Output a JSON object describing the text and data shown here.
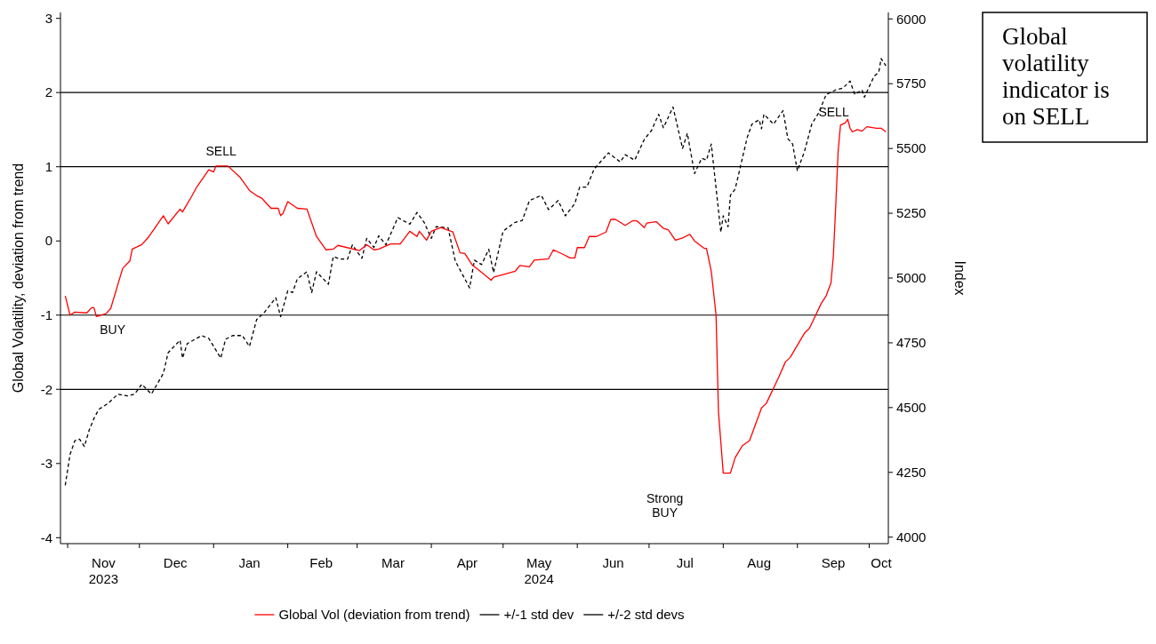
{
  "chart_data": {
    "type": "line",
    "ylabel": "Global Volatility, deviation from trend",
    "y2label": "Index",
    "xlim": [
      "2023-10-29",
      "2024-10-09"
    ],
    "xticks": [
      {
        "value": "2023-11-01",
        "label": null
      },
      {
        "value": "2023-12-01",
        "label": null
      },
      {
        "value": "2024-01-01",
        "label": null
      },
      {
        "value": "2024-02-01",
        "label": null
      },
      {
        "value": "2024-03-01",
        "label": null
      },
      {
        "value": "2024-04-01",
        "label": null
      },
      {
        "value": "2024-05-01",
        "label": null
      },
      {
        "value": "2024-06-01",
        "label": null
      },
      {
        "value": "2024-07-01",
        "label": null
      },
      {
        "value": "2024-08-01",
        "label": null
      },
      {
        "value": "2024-09-01",
        "label": null
      },
      {
        "value": "2024-10-01",
        "label": null
      },
      {
        "value": "2023-11-16",
        "label": "Nov\n2023"
      },
      {
        "value": "2023-12-16",
        "label": "Dec"
      },
      {
        "value": "2024-01-16",
        "label": "Jan"
      },
      {
        "value": "2024-02-15",
        "label": "Feb"
      },
      {
        "value": "2024-03-16",
        "label": "Mar"
      },
      {
        "value": "2024-04-16",
        "label": "Apr"
      },
      {
        "value": "2024-05-16",
        "label": "May\n2024"
      },
      {
        "value": "2024-06-16",
        "label": "Jun"
      },
      {
        "value": "2024-07-16",
        "label": "Jul"
      },
      {
        "value": "2024-08-16",
        "label": "Aug"
      },
      {
        "value": "2024-09-16",
        "label": "Sep"
      },
      {
        "value": "2024-10-06",
        "label": "Oct"
      }
    ],
    "ylim": [
      -4.08,
      3.08
    ],
    "yticks": [
      -4,
      -3,
      -2,
      -1,
      0,
      1,
      2,
      3
    ],
    "y2lim": [
      3975,
      6025
    ],
    "y2ticks": [
      4000,
      4250,
      4500,
      4750,
      5000,
      5250,
      5500,
      5750,
      6000
    ],
    "legend": "bottom",
    "series": [
      {
        "color": "#000000",
        "axis": "y2",
        "line_style": "dashed",
        "x": [
          "2023-10-31",
          "2023-11-02",
          "2023-11-04",
          "2023-11-06",
          "2023-11-08",
          "2023-11-10",
          "2023-11-12",
          "2023-11-14",
          "2023-11-18",
          "2023-11-22",
          "2023-11-26",
          "2023-11-29",
          "2023-12-02",
          "2023-12-06",
          "2023-12-11",
          "2023-12-13",
          "2023-12-18",
          "2023-12-19",
          "2023-12-21",
          "2023-12-27",
          "2023-12-30",
          "2024-01-04",
          "2024-01-06",
          "2024-01-09",
          "2024-01-13",
          "2024-01-16",
          "2024-01-19",
          "2024-01-22",
          "2024-01-27",
          "2024-01-29",
          "2024-02-01",
          "2024-02-03",
          "2024-02-05",
          "2024-02-09",
          "2024-02-11",
          "2024-02-13",
          "2024-02-18",
          "2024-02-20",
          "2024-02-23",
          "2024-02-26",
          "2024-02-28",
          "2024-03-03",
          "2024-03-05",
          "2024-03-08",
          "2024-03-10",
          "2024-03-13",
          "2024-03-18",
          "2024-03-23",
          "2024-03-26",
          "2024-03-29",
          "2024-04-01",
          "2024-04-03",
          "2024-04-08",
          "2024-04-11",
          "2024-04-17",
          "2024-04-19",
          "2024-04-22",
          "2024-04-25",
          "2024-04-27",
          "2024-05-01",
          "2024-05-06",
          "2024-05-09",
          "2024-05-12",
          "2024-05-17",
          "2024-05-20",
          "2024-05-24",
          "2024-05-27",
          "2024-05-31",
          "2024-06-02",
          "2024-06-05",
          "2024-06-08",
          "2024-06-14",
          "2024-06-19",
          "2024-06-21",
          "2024-06-25",
          "2024-06-29",
          "2024-07-02",
          "2024-07-05",
          "2024-07-07",
          "2024-07-11",
          "2024-07-15",
          "2024-07-17",
          "2024-07-20",
          "2024-07-23",
          "2024-07-25",
          "2024-07-27",
          "2024-07-31",
          "2024-08-01",
          "2024-08-03",
          "2024-08-04",
          "2024-08-06",
          "2024-08-11",
          "2024-08-13",
          "2024-08-16",
          "2024-08-17",
          "2024-08-18",
          "2024-08-22",
          "2024-08-26",
          "2024-08-28",
          "2024-08-30",
          "2024-09-01",
          "2024-09-04",
          "2024-09-07",
          "2024-09-10",
          "2024-09-13",
          "2024-09-17",
          "2024-09-20",
          "2024-09-23",
          "2024-09-25",
          "2024-09-28",
          "2024-09-29",
          "2024-10-03",
          "2024-10-05",
          "2024-10-06",
          "2024-10-08"
        ],
        "values": [
          4200,
          4319,
          4372,
          4378,
          4350,
          4413,
          4458,
          4493,
          4517,
          4552,
          4545,
          4552,
          4590,
          4552,
          4632,
          4712,
          4760,
          4691,
          4747,
          4778,
          4767,
          4691,
          4764,
          4778,
          4778,
          4736,
          4840,
          4865,
          4924,
          4851,
          4951,
          4944,
          4997,
          5024,
          4944,
          5024,
          4976,
          5083,
          5073,
          5073,
          5128,
          5076,
          5153,
          5118,
          5163,
          5128,
          5233,
          5208,
          5253,
          5215,
          5153,
          5198,
          5194,
          5066,
          4962,
          5069,
          5052,
          5111,
          5021,
          5181,
          5215,
          5222,
          5299,
          5319,
          5264,
          5299,
          5240,
          5288,
          5351,
          5351,
          5420,
          5483,
          5448,
          5476,
          5455,
          5535,
          5569,
          5632,
          5580,
          5660,
          5500,
          5559,
          5403,
          5462,
          5455,
          5517,
          5177,
          5240,
          5198,
          5319,
          5344,
          5542,
          5594,
          5611,
          5576,
          5632,
          5594,
          5646,
          5538,
          5517,
          5413,
          5490,
          5594,
          5639,
          5708,
          5726,
          5733,
          5760,
          5708,
          5726,
          5698,
          5778,
          5795,
          5847,
          5819
        ]
      },
      {
        "name": "Global Vol (deviation from trend)",
        "color": "#ff0000",
        "line_style": "solid",
        "x": [
          "2023-10-31",
          "2023-11-02",
          "2023-11-04",
          "2023-11-09",
          "2023-11-11",
          "2023-11-12",
          "2023-11-13",
          "2023-11-17",
          "2023-11-19",
          "2023-11-24",
          "2023-11-27",
          "2023-11-28",
          "2023-12-02",
          "2023-12-05",
          "2023-12-11",
          "2023-12-13",
          "2023-12-18",
          "2023-12-19",
          "2023-12-23",
          "2023-12-25",
          "2023-12-30",
          "2024-01-01",
          "2024-01-02",
          "2024-01-07",
          "2024-01-12",
          "2024-01-16",
          "2024-01-19",
          "2024-01-21",
          "2024-01-25",
          "2024-01-28",
          "2024-01-29",
          "2024-01-30",
          "2024-02-01",
          "2024-02-05",
          "2024-02-09",
          "2024-02-13",
          "2024-02-17",
          "2024-02-20",
          "2024-02-22",
          "2024-03-02",
          "2024-03-05",
          "2024-03-08",
          "2024-03-10",
          "2024-03-15",
          "2024-03-19",
          "2024-03-23",
          "2024-03-26",
          "2024-03-27",
          "2024-03-30",
          "2024-04-01",
          "2024-04-05",
          "2024-04-10",
          "2024-04-13",
          "2024-04-15",
          "2024-04-18",
          "2024-04-23",
          "2024-04-26",
          "2024-04-27",
          "2024-05-06",
          "2024-05-08",
          "2024-05-12",
          "2024-05-14",
          "2024-05-20",
          "2024-05-22",
          "2024-05-26",
          "2024-05-29",
          "2024-05-31",
          "2024-06-01",
          "2024-06-04",
          "2024-06-06",
          "2024-06-09",
          "2024-06-13",
          "2024-06-15",
          "2024-06-17",
          "2024-06-21",
          "2024-06-24",
          "2024-06-26",
          "2024-06-29",
          "2024-06-30",
          "2024-07-04",
          "2024-07-07",
          "2024-07-09",
          "2024-07-12",
          "2024-07-15",
          "2024-07-18",
          "2024-07-20",
          "2024-07-24",
          "2024-07-25",
          "2024-07-27",
          "2024-07-29",
          "2024-07-30",
          "2024-08-01",
          "2024-08-04",
          "2024-08-06",
          "2024-08-09",
          "2024-08-12",
          "2024-08-17",
          "2024-08-19",
          "2024-08-24",
          "2024-08-27",
          "2024-08-29",
          "2024-08-31",
          "2024-09-04",
          "2024-09-06",
          "2024-09-11",
          "2024-09-13",
          "2024-09-15",
          "2024-09-16",
          "2024-09-17",
          "2024-09-18",
          "2024-09-19",
          "2024-09-21",
          "2024-09-22",
          "2024-09-23",
          "2024-09-24",
          "2024-09-26",
          "2024-09-28",
          "2024-09-30",
          "2024-10-04",
          "2024-10-06",
          "2024-10-08"
        ],
        "values": [
          -0.74,
          -1.0,
          -0.96,
          -0.97,
          -0.9,
          -0.9,
          -1.02,
          -0.98,
          -0.91,
          -0.37,
          -0.27,
          -0.11,
          -0.05,
          0.06,
          0.34,
          0.23,
          0.43,
          0.39,
          0.61,
          0.73,
          0.96,
          0.93,
          1.01,
          1.01,
          0.86,
          0.68,
          0.61,
          0.58,
          0.44,
          0.44,
          0.34,
          0.37,
          0.53,
          0.44,
          0.43,
          0.06,
          -0.12,
          -0.11,
          -0.06,
          -0.13,
          -0.05,
          -0.12,
          -0.11,
          -0.04,
          -0.04,
          0.13,
          0.06,
          0.13,
          0.01,
          0.13,
          0.18,
          0.12,
          -0.16,
          -0.17,
          -0.32,
          -0.45,
          -0.53,
          -0.49,
          -0.41,
          -0.33,
          -0.35,
          -0.26,
          -0.24,
          -0.12,
          -0.18,
          -0.23,
          -0.23,
          -0.09,
          -0.09,
          0.06,
          0.06,
          0.12,
          0.29,
          0.29,
          0.21,
          0.27,
          0.27,
          0.18,
          0.24,
          0.26,
          0.17,
          0.15,
          0.01,
          0.04,
          0.09,
          0.0,
          -0.1,
          -0.1,
          -0.41,
          -1.0,
          -2.3,
          -3.13,
          -3.13,
          -2.92,
          -2.76,
          -2.69,
          -2.25,
          -2.19,
          -1.85,
          -1.63,
          -1.57,
          -1.46,
          -1.24,
          -1.18,
          -0.84,
          -0.74,
          -0.57,
          -0.21,
          0.46,
          1.2,
          1.56,
          1.59,
          1.64,
          1.52,
          1.47,
          1.5,
          1.48,
          1.54,
          1.52,
          1.52,
          1.47
        ]
      }
    ],
    "ref_lines": [
      {
        "axis": "y",
        "value": 1,
        "label": "+/-1 std dev",
        "color": "#000000"
      },
      {
        "axis": "y",
        "value": -1,
        "color": "#000000"
      },
      {
        "axis": "y",
        "value": 2,
        "label": "+/-2 std devs",
        "color": "#000000"
      },
      {
        "axis": "y",
        "value": -2,
        "color": "#000000"
      }
    ],
    "annotations": [
      "SELL",
      "BUY",
      "Strong BUY",
      "SELL",
      "Global volatility indicator is on SELL"
    ]
  }
}
